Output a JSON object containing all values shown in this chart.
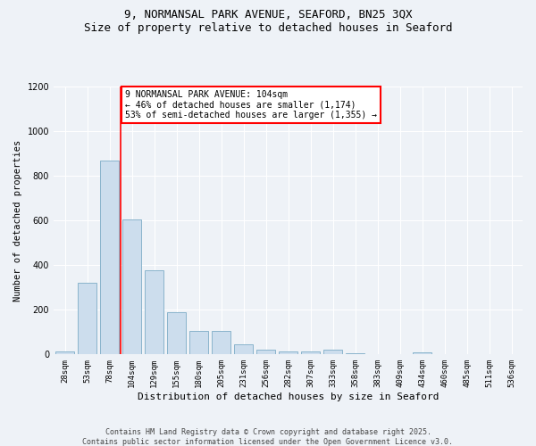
{
  "title1": "9, NORMANSAL PARK AVENUE, SEAFORD, BN25 3QX",
  "title2": "Size of property relative to detached houses in Seaford",
  "xlabel": "Distribution of detached houses by size in Seaford",
  "ylabel": "Number of detached properties",
  "categories": [
    "28sqm",
    "53sqm",
    "78sqm",
    "104sqm",
    "129sqm",
    "155sqm",
    "180sqm",
    "205sqm",
    "231sqm",
    "256sqm",
    "282sqm",
    "307sqm",
    "333sqm",
    "358sqm",
    "383sqm",
    "409sqm",
    "434sqm",
    "460sqm",
    "485sqm",
    "511sqm",
    "536sqm"
  ],
  "values": [
    15,
    320,
    870,
    605,
    375,
    190,
    105,
    105,
    45,
    20,
    15,
    15,
    20,
    5,
    0,
    0,
    10,
    0,
    0,
    0,
    0
  ],
  "bar_color": "#ccdded",
  "bar_edge_color": "#8ab4cc",
  "vline_index": 3,
  "vline_color": "red",
  "annotation_text": "9 NORMANSAL PARK AVENUE: 104sqm\n← 46% of detached houses are smaller (1,174)\n53% of semi-detached houses are larger (1,355) →",
  "ylim": [
    0,
    1200
  ],
  "yticks": [
    0,
    200,
    400,
    600,
    800,
    1000,
    1200
  ],
  "footer1": "Contains HM Land Registry data © Crown copyright and database right 2025.",
  "footer2": "Contains public sector information licensed under the Open Government Licence v3.0.",
  "bg_color": "#eef2f7",
  "grid_color": "#ffffff",
  "title_fontsize": 9,
  "ylabel_fontsize": 7.5,
  "xlabel_fontsize": 8,
  "tick_fontsize": 6.5,
  "footer_fontsize": 6
}
